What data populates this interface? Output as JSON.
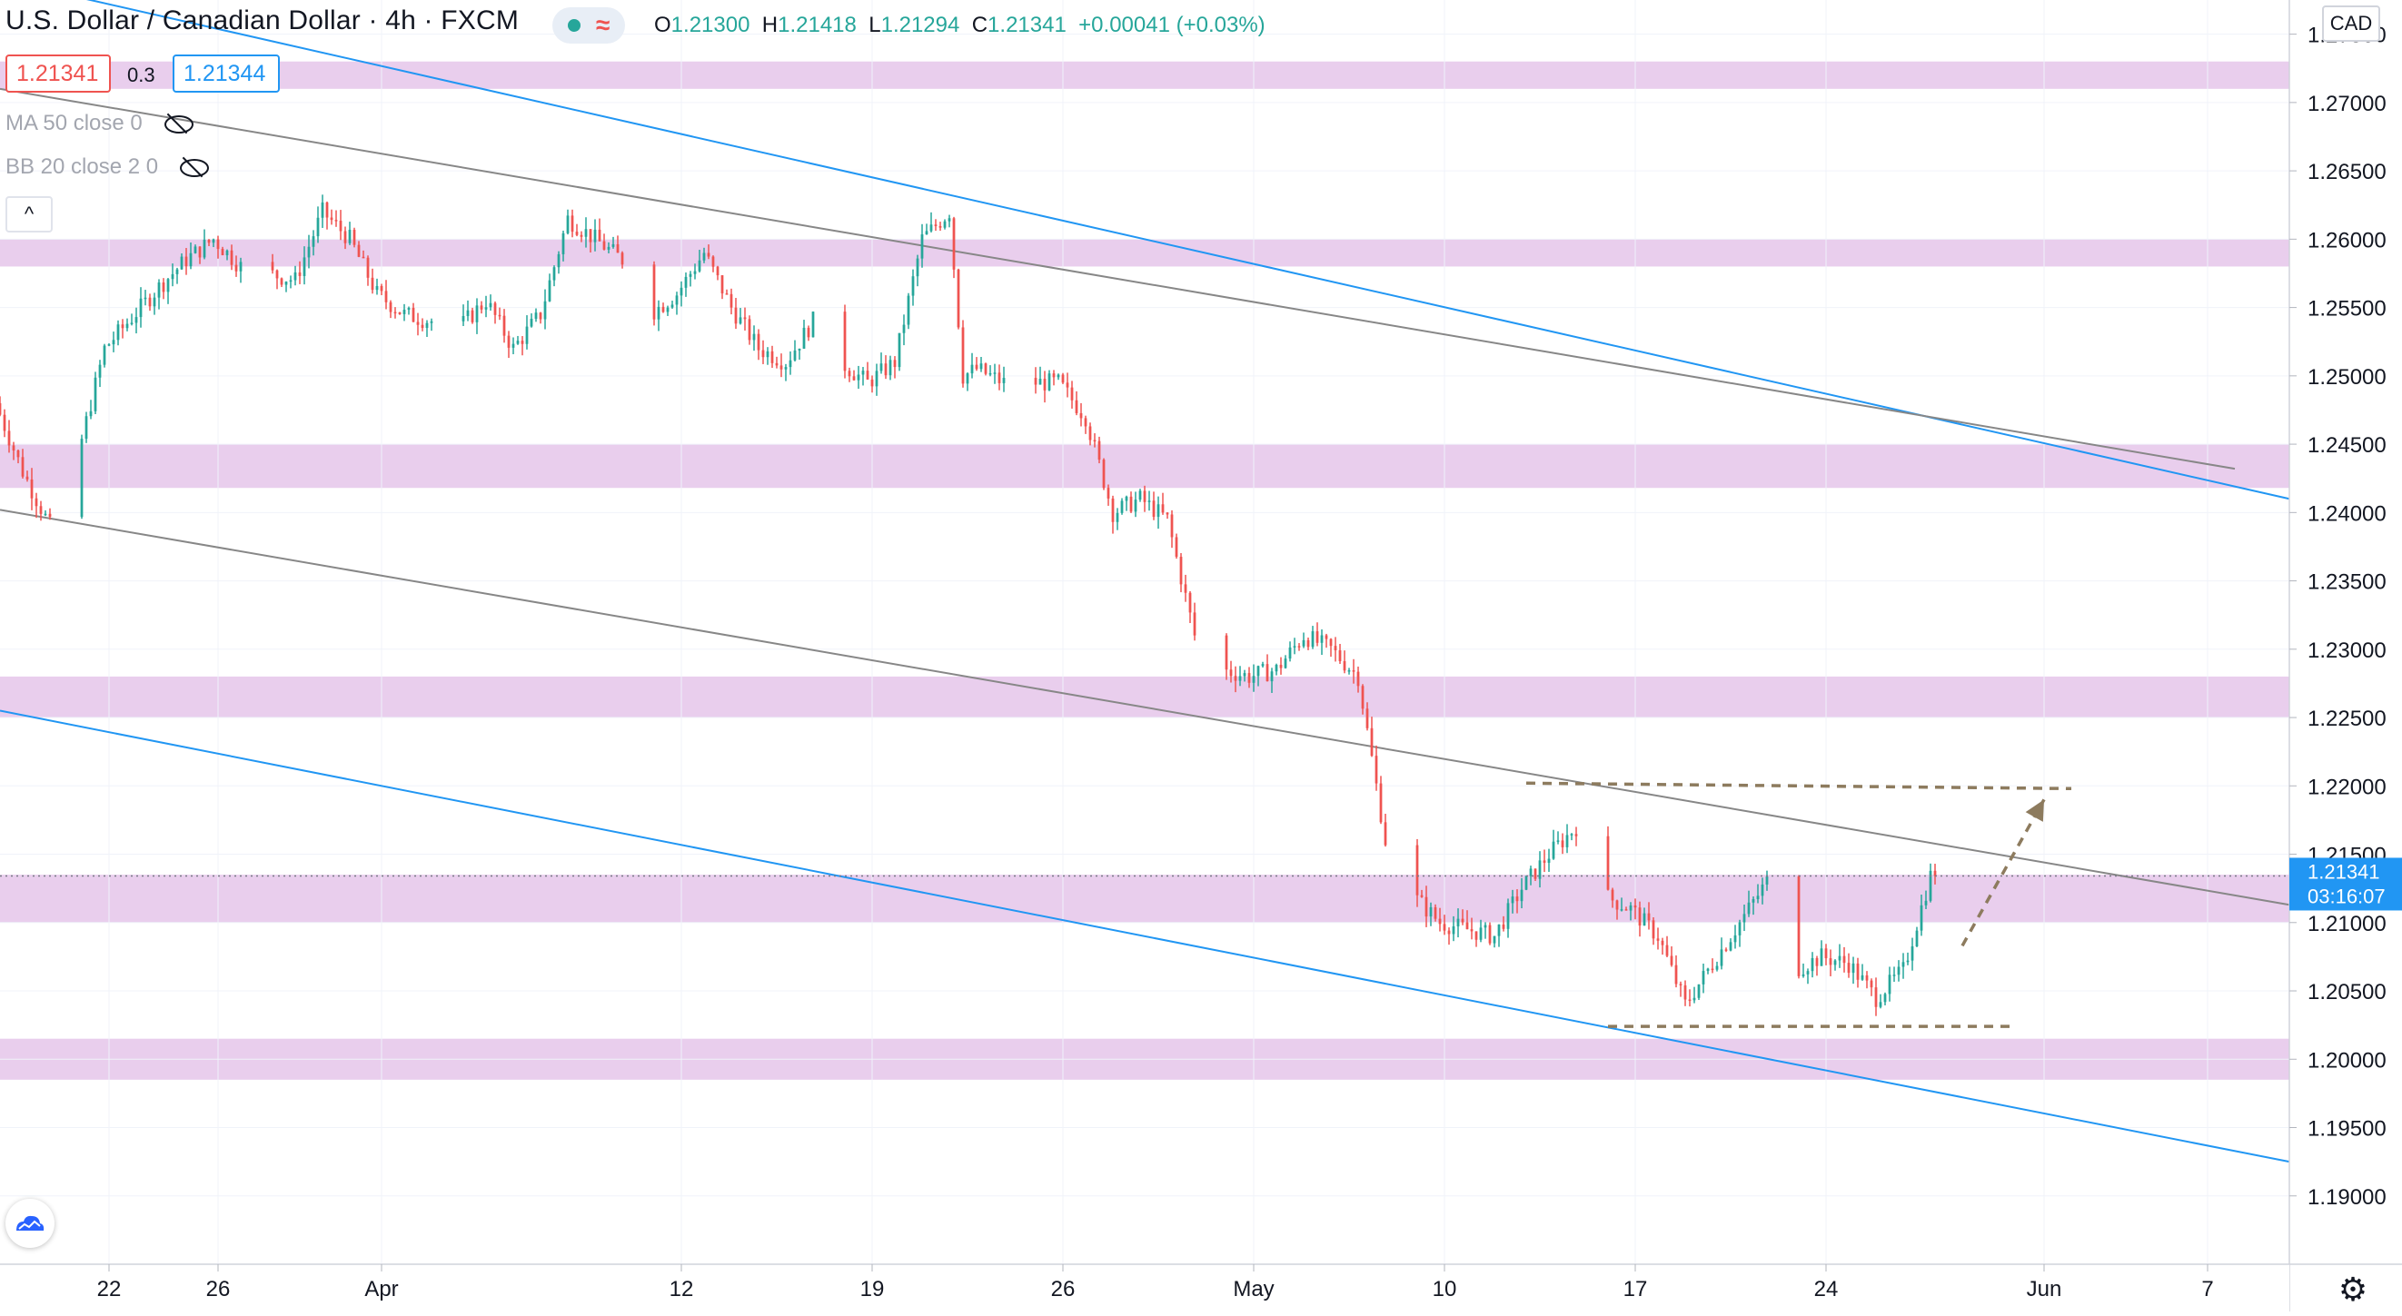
{
  "header": {
    "title": "U.S. Dollar / Canadian Dollar · 4h · FXCM",
    "ohlc": {
      "o_label": "O",
      "o": "1.21300",
      "h_label": "H",
      "h": "1.21418",
      "l_label": "L",
      "l": "1.21294",
      "c_label": "C",
      "c": "1.21341",
      "change": "+0.00041 (+0.03%)"
    },
    "status_colors": {
      "dot": "#26a69a",
      "wave": "#ef5350"
    }
  },
  "trade": {
    "sell": "1.21341",
    "spread": "0.3",
    "buy": "1.21344"
  },
  "indicators": [
    {
      "label": "MA 50 close 0"
    },
    {
      "label": "BB 20 close 2 0"
    }
  ],
  "collapse_label": "^",
  "currency": "CAD",
  "price_label": {
    "price": "1.21341",
    "countdown": "03:16:07"
  },
  "chart_data": {
    "type": "candlestick",
    "symbol": "USDCAD",
    "timeframe": "4h",
    "ylim": [
      1.185,
      1.2775
    ],
    "y_ticks": [
      "1.27500",
      "1.27000",
      "1.26500",
      "1.26000",
      "1.25500",
      "1.25000",
      "1.24500",
      "1.24000",
      "1.23500",
      "1.23000",
      "1.22500",
      "1.22000",
      "1.21500",
      "1.21000",
      "1.20500",
      "1.20000",
      "1.19500",
      "1.19000"
    ],
    "x_ticks": [
      "22",
      "26",
      "Apr",
      "12",
      "19",
      "26",
      "May",
      "10",
      "17",
      "24",
      "Jun",
      "7"
    ],
    "x_range_dates": [
      "2021-03-18",
      "2021-06-10"
    ],
    "x_tick_dates": [
      "2021-03-22",
      "2021-03-26",
      "2021-04-01",
      "2021-04-12",
      "2021-04-19",
      "2021-04-26",
      "2021-05-03",
      "2021-05-10",
      "2021-05-17",
      "2021-05-24",
      "2021-06-01",
      "2021-06-07"
    ],
    "last_date": "2021-05-28",
    "colors": {
      "up": "#26a69a",
      "down": "#ef5350",
      "zone": "#e1bee7",
      "channel": "#2196f3",
      "trend": "#878787",
      "annotation": "#8d7b5e",
      "last_price": "#2196f3"
    },
    "path": [
      [
        "2021-03-18",
        1.248
      ],
      [
        "2021-03-19",
        1.243
      ],
      [
        "2021-03-20",
        1.239
      ],
      [
        "2021-03-21",
        1.244
      ],
      [
        "2021-03-22",
        1.252
      ],
      [
        "2021-03-24",
        1.2565
      ],
      [
        "2021-03-25",
        1.2585
      ],
      [
        "2021-03-26",
        1.26
      ],
      [
        "2021-03-27",
        1.258
      ],
      [
        "2021-03-29",
        1.257
      ],
      [
        "2021-03-30",
        1.262
      ],
      [
        "2021-03-31",
        1.26
      ],
      [
        "2021-04-01",
        1.256
      ],
      [
        "2021-04-02",
        1.2545
      ],
      [
        "2021-04-04",
        1.2535
      ],
      [
        "2021-04-05",
        1.2555
      ],
      [
        "2021-04-06",
        1.252
      ],
      [
        "2021-04-07",
        1.2545
      ],
      [
        "2021-04-08",
        1.2615
      ],
      [
        "2021-04-09",
        1.26
      ],
      [
        "2021-04-10",
        1.2585
      ],
      [
        "2021-04-11",
        1.2545
      ],
      [
        "2021-04-12",
        1.256
      ],
      [
        "2021-04-13",
        1.259
      ],
      [
        "2021-04-14",
        1.255
      ],
      [
        "2021-04-15",
        1.252
      ],
      [
        "2021-04-16",
        1.251
      ],
      [
        "2021-04-17",
        1.254
      ],
      [
        "2021-04-18",
        1.251
      ],
      [
        "2021-04-19",
        1.2495
      ],
      [
        "2021-04-20",
        1.251
      ],
      [
        "2021-04-21",
        1.26
      ],
      [
        "2021-04-22",
        1.262
      ],
      [
        "2021-04-22T12",
        1.25
      ],
      [
        "2021-04-23",
        1.2505
      ],
      [
        "2021-04-24",
        1.2495
      ],
      [
        "2021-04-26",
        1.2495
      ],
      [
        "2021-04-27",
        1.247
      ],
      [
        "2021-04-28",
        1.24
      ],
      [
        "2021-04-29",
        1.241
      ],
      [
        "2021-04-30",
        1.2395
      ],
      [
        "2021-05-01",
        1.231
      ],
      [
        "2021-05-02",
        1.2285
      ],
      [
        "2021-05-03",
        1.228
      ],
      [
        "2021-05-04",
        1.2285
      ],
      [
        "2021-05-05",
        1.231
      ],
      [
        "2021-05-06",
        1.23
      ],
      [
        "2021-05-07",
        1.228
      ],
      [
        "2021-05-08",
        1.216
      ],
      [
        "2021-05-09",
        1.212
      ],
      [
        "2021-05-10",
        1.21
      ],
      [
        "2021-05-11",
        1.2095
      ],
      [
        "2021-05-12",
        1.209
      ],
      [
        "2021-05-13",
        1.2125
      ],
      [
        "2021-05-14",
        1.215
      ],
      [
        "2021-05-15",
        1.217
      ],
      [
        "2021-05-16",
        1.212
      ],
      [
        "2021-05-17",
        1.211
      ],
      [
        "2021-05-18",
        1.209
      ],
      [
        "2021-05-19",
        1.204
      ],
      [
        "2021-05-20",
        1.207
      ],
      [
        "2021-05-21",
        1.21
      ],
      [
        "2021-05-22",
        1.213
      ],
      [
        "2021-05-23",
        1.2065
      ],
      [
        "2021-05-24",
        1.2075
      ],
      [
        "2021-05-25",
        1.207
      ],
      [
        "2021-05-26",
        1.2045
      ],
      [
        "2021-05-27",
        1.2065
      ],
      [
        "2021-05-28",
        1.21341
      ]
    ],
    "zones": [
      [
        1.271,
        1.273
      ],
      [
        1.258,
        1.26
      ],
      [
        1.2418,
        1.245
      ],
      [
        1.225,
        1.228
      ],
      [
        1.21,
        1.2135
      ],
      [
        1.1985,
        1.2015
      ]
    ],
    "channel_lines": [
      [
        [
          "2021-03-18",
          1.279
        ],
        [
          "2021-06-10",
          1.241
        ]
      ],
      [
        [
          "2021-03-18",
          1.2255
        ],
        [
          "2021-06-10",
          1.1925
        ]
      ]
    ],
    "trend_lines": [
      [
        [
          "2021-03-18",
          1.271
        ],
        [
          "2021-06-08",
          1.2432
        ]
      ],
      [
        [
          "2021-03-18",
          1.2402
        ],
        [
          "2021-06-10",
          1.2113
        ]
      ]
    ],
    "dashed_levels": [
      [
        [
          "2021-05-13",
          1.2202
        ],
        [
          "2021-06-02",
          1.2198
        ]
      ],
      [
        [
          "2021-05-16",
          1.2024
        ],
        [
          "2021-05-31",
          1.2024
        ]
      ]
    ],
    "arrow": [
      [
        "2021-05-29",
        1.2083
      ],
      [
        "2021-06-01",
        1.219
      ]
    ],
    "last_price": 1.21341
  }
}
